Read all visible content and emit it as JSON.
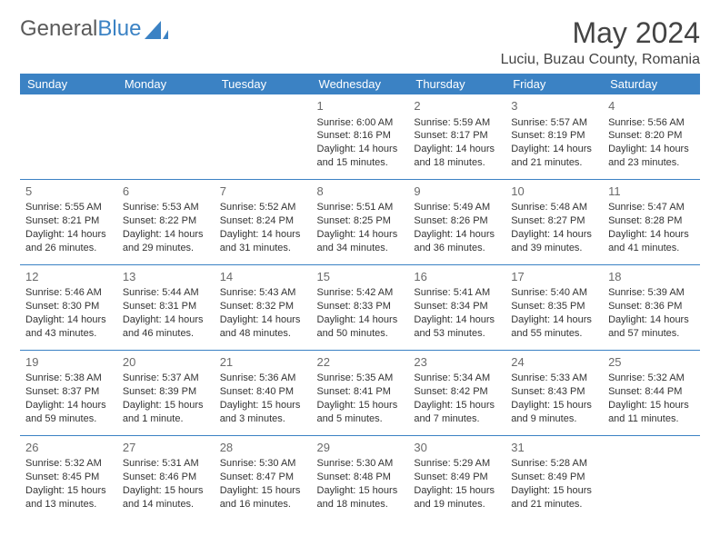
{
  "brand": {
    "part1": "General",
    "part2": "Blue"
  },
  "title": "May 2024",
  "location": "Luciu, Buzau County, Romania",
  "colors": {
    "header_bg": "#3b82c4",
    "header_text": "#ffffff",
    "border": "#3b82c4",
    "text": "#333333",
    "muted": "#6a6a6a",
    "background": "#ffffff"
  },
  "weekdays": [
    "Sunday",
    "Monday",
    "Tuesday",
    "Wednesday",
    "Thursday",
    "Friday",
    "Saturday"
  ],
  "weeks": [
    [
      {
        "day": "",
        "lines": []
      },
      {
        "day": "",
        "lines": []
      },
      {
        "day": "",
        "lines": []
      },
      {
        "day": "1",
        "lines": [
          "Sunrise: 6:00 AM",
          "Sunset: 8:16 PM",
          "Daylight: 14 hours and 15 minutes."
        ]
      },
      {
        "day": "2",
        "lines": [
          "Sunrise: 5:59 AM",
          "Sunset: 8:17 PM",
          "Daylight: 14 hours and 18 minutes."
        ]
      },
      {
        "day": "3",
        "lines": [
          "Sunrise: 5:57 AM",
          "Sunset: 8:19 PM",
          "Daylight: 14 hours and 21 minutes."
        ]
      },
      {
        "day": "4",
        "lines": [
          "Sunrise: 5:56 AM",
          "Sunset: 8:20 PM",
          "Daylight: 14 hours and 23 minutes."
        ]
      }
    ],
    [
      {
        "day": "5",
        "lines": [
          "Sunrise: 5:55 AM",
          "Sunset: 8:21 PM",
          "Daylight: 14 hours and 26 minutes."
        ]
      },
      {
        "day": "6",
        "lines": [
          "Sunrise: 5:53 AM",
          "Sunset: 8:22 PM",
          "Daylight: 14 hours and 29 minutes."
        ]
      },
      {
        "day": "7",
        "lines": [
          "Sunrise: 5:52 AM",
          "Sunset: 8:24 PM",
          "Daylight: 14 hours and 31 minutes."
        ]
      },
      {
        "day": "8",
        "lines": [
          "Sunrise: 5:51 AM",
          "Sunset: 8:25 PM",
          "Daylight: 14 hours and 34 minutes."
        ]
      },
      {
        "day": "9",
        "lines": [
          "Sunrise: 5:49 AM",
          "Sunset: 8:26 PM",
          "Daylight: 14 hours and 36 minutes."
        ]
      },
      {
        "day": "10",
        "lines": [
          "Sunrise: 5:48 AM",
          "Sunset: 8:27 PM",
          "Daylight: 14 hours and 39 minutes."
        ]
      },
      {
        "day": "11",
        "lines": [
          "Sunrise: 5:47 AM",
          "Sunset: 8:28 PM",
          "Daylight: 14 hours and 41 minutes."
        ]
      }
    ],
    [
      {
        "day": "12",
        "lines": [
          "Sunrise: 5:46 AM",
          "Sunset: 8:30 PM",
          "Daylight: 14 hours and 43 minutes."
        ]
      },
      {
        "day": "13",
        "lines": [
          "Sunrise: 5:44 AM",
          "Sunset: 8:31 PM",
          "Daylight: 14 hours and 46 minutes."
        ]
      },
      {
        "day": "14",
        "lines": [
          "Sunrise: 5:43 AM",
          "Sunset: 8:32 PM",
          "Daylight: 14 hours and 48 minutes."
        ]
      },
      {
        "day": "15",
        "lines": [
          "Sunrise: 5:42 AM",
          "Sunset: 8:33 PM",
          "Daylight: 14 hours and 50 minutes."
        ]
      },
      {
        "day": "16",
        "lines": [
          "Sunrise: 5:41 AM",
          "Sunset: 8:34 PM",
          "Daylight: 14 hours and 53 minutes."
        ]
      },
      {
        "day": "17",
        "lines": [
          "Sunrise: 5:40 AM",
          "Sunset: 8:35 PM",
          "Daylight: 14 hours and 55 minutes."
        ]
      },
      {
        "day": "18",
        "lines": [
          "Sunrise: 5:39 AM",
          "Sunset: 8:36 PM",
          "Daylight: 14 hours and 57 minutes."
        ]
      }
    ],
    [
      {
        "day": "19",
        "lines": [
          "Sunrise: 5:38 AM",
          "Sunset: 8:37 PM",
          "Daylight: 14 hours and 59 minutes."
        ]
      },
      {
        "day": "20",
        "lines": [
          "Sunrise: 5:37 AM",
          "Sunset: 8:39 PM",
          "Daylight: 15 hours and 1 minute."
        ]
      },
      {
        "day": "21",
        "lines": [
          "Sunrise: 5:36 AM",
          "Sunset: 8:40 PM",
          "Daylight: 15 hours and 3 minutes."
        ]
      },
      {
        "day": "22",
        "lines": [
          "Sunrise: 5:35 AM",
          "Sunset: 8:41 PM",
          "Daylight: 15 hours and 5 minutes."
        ]
      },
      {
        "day": "23",
        "lines": [
          "Sunrise: 5:34 AM",
          "Sunset: 8:42 PM",
          "Daylight: 15 hours and 7 minutes."
        ]
      },
      {
        "day": "24",
        "lines": [
          "Sunrise: 5:33 AM",
          "Sunset: 8:43 PM",
          "Daylight: 15 hours and 9 minutes."
        ]
      },
      {
        "day": "25",
        "lines": [
          "Sunrise: 5:32 AM",
          "Sunset: 8:44 PM",
          "Daylight: 15 hours and 11 minutes."
        ]
      }
    ],
    [
      {
        "day": "26",
        "lines": [
          "Sunrise: 5:32 AM",
          "Sunset: 8:45 PM",
          "Daylight: 15 hours and 13 minutes."
        ]
      },
      {
        "day": "27",
        "lines": [
          "Sunrise: 5:31 AM",
          "Sunset: 8:46 PM",
          "Daylight: 15 hours and 14 minutes."
        ]
      },
      {
        "day": "28",
        "lines": [
          "Sunrise: 5:30 AM",
          "Sunset: 8:47 PM",
          "Daylight: 15 hours and 16 minutes."
        ]
      },
      {
        "day": "29",
        "lines": [
          "Sunrise: 5:30 AM",
          "Sunset: 8:48 PM",
          "Daylight: 15 hours and 18 minutes."
        ]
      },
      {
        "day": "30",
        "lines": [
          "Sunrise: 5:29 AM",
          "Sunset: 8:49 PM",
          "Daylight: 15 hours and 19 minutes."
        ]
      },
      {
        "day": "31",
        "lines": [
          "Sunrise: 5:28 AM",
          "Sunset: 8:49 PM",
          "Daylight: 15 hours and 21 minutes."
        ]
      },
      {
        "day": "",
        "lines": []
      }
    ]
  ]
}
